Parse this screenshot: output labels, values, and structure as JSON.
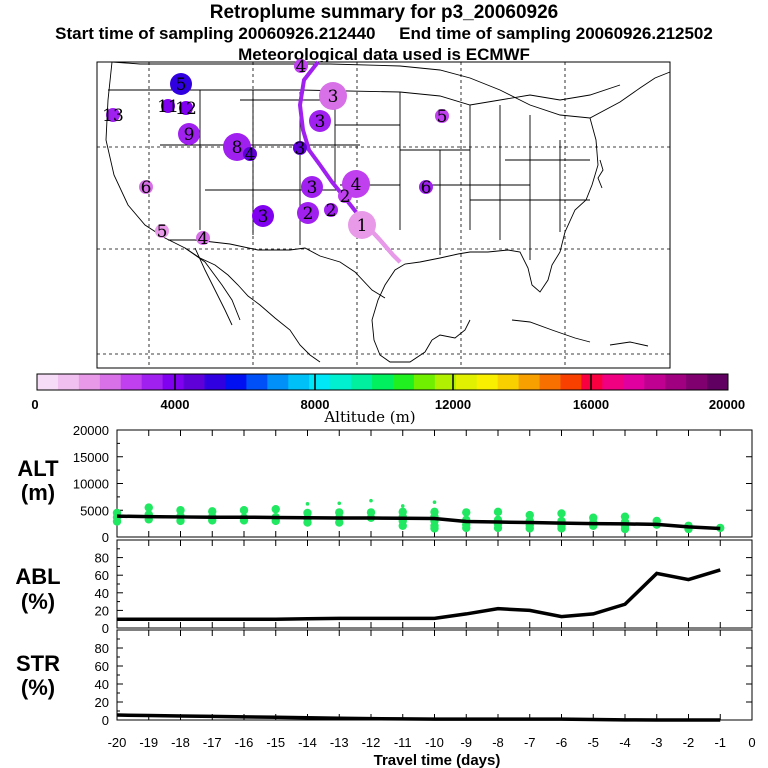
{
  "header": {
    "title": "Retroplume summary for p3_20060926",
    "start_label": "Start time of sampling 20060926.212440",
    "end_label": "End time of sampling 20060926.212502",
    "met_label": "Meteorological data used is ECMWF"
  },
  "colorbar": {
    "title": "Altitude (m)",
    "tick_labels": [
      "0",
      "4000",
      "8000",
      "12000",
      "16000",
      "20000"
    ],
    "colors": [
      "#f6dcf6",
      "#f0c0f0",
      "#e89ae8",
      "#d870e8",
      "#c040f0",
      "#a020f0",
      "#8000f0",
      "#6000d8",
      "#3000e0",
      "#0010f0",
      "#0050f8",
      "#0090f8",
      "#00c0f8",
      "#00e8f8",
      "#00f0d0",
      "#00f0a0",
      "#00f060",
      "#20f020",
      "#70f000",
      "#b0f000",
      "#e0f000",
      "#f8f000",
      "#f8d000",
      "#f8a000",
      "#f87000",
      "#f84000",
      "#f80040",
      "#f00080",
      "#e000a0",
      "#c00090",
      "#a00080",
      "#800070",
      "#600060"
    ]
  },
  "map": {
    "plume_labels": [
      {
        "text": "13",
        "size": "small",
        "color": "#a020f0"
      },
      {
        "text": "5",
        "size": "medium",
        "color": "#3000e0"
      },
      {
        "text": "11",
        "size": "small",
        "color": "#8000f0"
      },
      {
        "text": "12",
        "size": "small",
        "color": "#8000f0"
      },
      {
        "text": "9",
        "size": "medium",
        "color": "#a020f0"
      },
      {
        "text": "8",
        "size": "large",
        "color": "#a020f0"
      },
      {
        "text": "4",
        "size": "small",
        "color": "#6000d8"
      },
      {
        "text": "3",
        "size": "small",
        "color": "#6000d8"
      },
      {
        "text": "3",
        "size": "large",
        "color": "#d870e8"
      },
      {
        "text": "3",
        "size": "medium",
        "color": "#a020f0"
      },
      {
        "text": "4",
        "size": "small",
        "color": "#c040f0"
      },
      {
        "text": "3",
        "size": "medium",
        "color": "#a020f0"
      },
      {
        "text": "2",
        "size": "medium",
        "color": "#a020f0"
      },
      {
        "text": "3",
        "size": "medium",
        "color": "#8000f0"
      },
      {
        "text": "2",
        "size": "small",
        "color": "#a020f0"
      },
      {
        "text": "4",
        "size": "large",
        "color": "#c040f0"
      },
      {
        "text": "2",
        "size": "small",
        "color": "#c040f0"
      },
      {
        "text": "1",
        "size": "large",
        "color": "#e89ae8"
      },
      {
        "text": "6",
        "size": "small",
        "color": "#d870e8"
      },
      {
        "text": "5",
        "size": "small",
        "color": "#e89ae8"
      },
      {
        "text": "4",
        "size": "small",
        "color": "#d870e8"
      },
      {
        "text": "6",
        "size": "small",
        "color": "#a020f0"
      },
      {
        "text": "5",
        "size": "small",
        "color": "#c040f0"
      }
    ]
  },
  "chart_data": [
    {
      "type": "scatter",
      "panel_label": [
        "ALT",
        "(m)"
      ],
      "x": [
        -20,
        -19,
        -18,
        -17,
        -16,
        -15,
        -14,
        -13,
        -12,
        -11,
        -10,
        -9,
        -8,
        -7,
        -6,
        -5,
        -4,
        -3,
        -2,
        -1
      ],
      "mean_line": [
        3900,
        3800,
        3750,
        3700,
        3700,
        3650,
        3600,
        3550,
        3550,
        3500,
        3450,
        2900,
        2800,
        2700,
        2600,
        2500,
        2450,
        2350,
        1900,
        1600
      ],
      "scatter_points": [
        {
          "x": -20,
          "y": [
            4500,
            3700,
            2900
          ]
        },
        {
          "x": -19,
          "y": [
            5500,
            4200,
            3300
          ]
        },
        {
          "x": -18,
          "y": [
            5000,
            3900,
            3000
          ]
        },
        {
          "x": -17,
          "y": [
            4800,
            3800,
            3100
          ]
        },
        {
          "x": -16,
          "y": [
            5000,
            3600,
            3100
          ]
        },
        {
          "x": -15,
          "y": [
            5200,
            3700,
            3000
          ]
        },
        {
          "x": -14,
          "y": [
            6200,
            4500,
            3500,
            2700
          ]
        },
        {
          "x": -13,
          "y": [
            6300,
            4600,
            3600,
            2700
          ]
        },
        {
          "x": -12,
          "y": [
            6800,
            4600,
            3600
          ]
        },
        {
          "x": -11,
          "y": [
            5800,
            4700,
            3800,
            3000,
            2100
          ]
        },
        {
          "x": -10,
          "y": [
            6500,
            4700,
            3800,
            3000,
            2100,
            1600
          ]
        },
        {
          "x": -9,
          "y": [
            4600,
            3200,
            2300,
            1700
          ]
        },
        {
          "x": -8,
          "y": [
            4700,
            3200,
            2400,
            1700
          ]
        },
        {
          "x": -7,
          "y": [
            4100,
            3000,
            2200,
            1600
          ]
        },
        {
          "x": -6,
          "y": [
            4400,
            3000,
            2100,
            1600
          ]
        },
        {
          "x": -5,
          "y": [
            3600,
            2700,
            2100
          ]
        },
        {
          "x": -4,
          "y": [
            3800,
            2800,
            2100,
            1500
          ]
        },
        {
          "x": -3,
          "y": [
            3000,
            2300
          ]
        },
        {
          "x": -2,
          "y": [
            2100,
            1500
          ]
        },
        {
          "x": -1,
          "y": [
            1700
          ]
        }
      ],
      "xlim": [
        -20,
        0
      ],
      "ylim": [
        0,
        20000
      ],
      "yticks": [
        0,
        5000,
        10000,
        15000,
        20000
      ],
      "point_color": "#20e860"
    },
    {
      "type": "line",
      "panel_label": [
        "ABL",
        "(%)"
      ],
      "x": [
        -20,
        -19,
        -18,
        -17,
        -16,
        -15,
        -14,
        -13,
        -12,
        -11,
        -10,
        -9,
        -8,
        -7,
        -6,
        -5,
        -4,
        -3,
        -2,
        -1
      ],
      "y": [
        10,
        10,
        10,
        10,
        10,
        10,
        10.5,
        11,
        11,
        11,
        11,
        16,
        22,
        20,
        13,
        16,
        27,
        62,
        55,
        66
      ],
      "xlim": [
        -20,
        0
      ],
      "ylim": [
        0,
        100
      ],
      "yticks": [
        0,
        20,
        40,
        60,
        80
      ]
    },
    {
      "type": "line",
      "panel_label": [
        "STR",
        "(%)"
      ],
      "x": [
        -20,
        -19,
        -18,
        -17,
        -16,
        -15,
        -14,
        -13,
        -12,
        -11,
        -10,
        -9,
        -8,
        -7,
        -6,
        -5,
        -4,
        -3,
        -2,
        -1
      ],
      "y": [
        5.5,
        5,
        4.5,
        4,
        3.5,
        3,
        2.5,
        2,
        1.5,
        1.2,
        1,
        1,
        1,
        1,
        1,
        0.5,
        0.2,
        0,
        0,
        0
      ],
      "xlim": [
        -20,
        0
      ],
      "ylim": [
        0,
        100
      ],
      "yticks": [
        0,
        20,
        40,
        60,
        80
      ],
      "xlabel": "Travel time (days)",
      "xtick_labels": [
        "-20",
        "-19",
        "-18",
        "-17",
        "-16",
        "-15",
        "-14",
        "-13",
        "-12",
        "-11",
        "-10",
        "-9",
        "-8",
        "-7",
        "-6",
        "-5",
        "-4",
        "-3",
        "-2",
        "-1",
        "0"
      ]
    }
  ]
}
